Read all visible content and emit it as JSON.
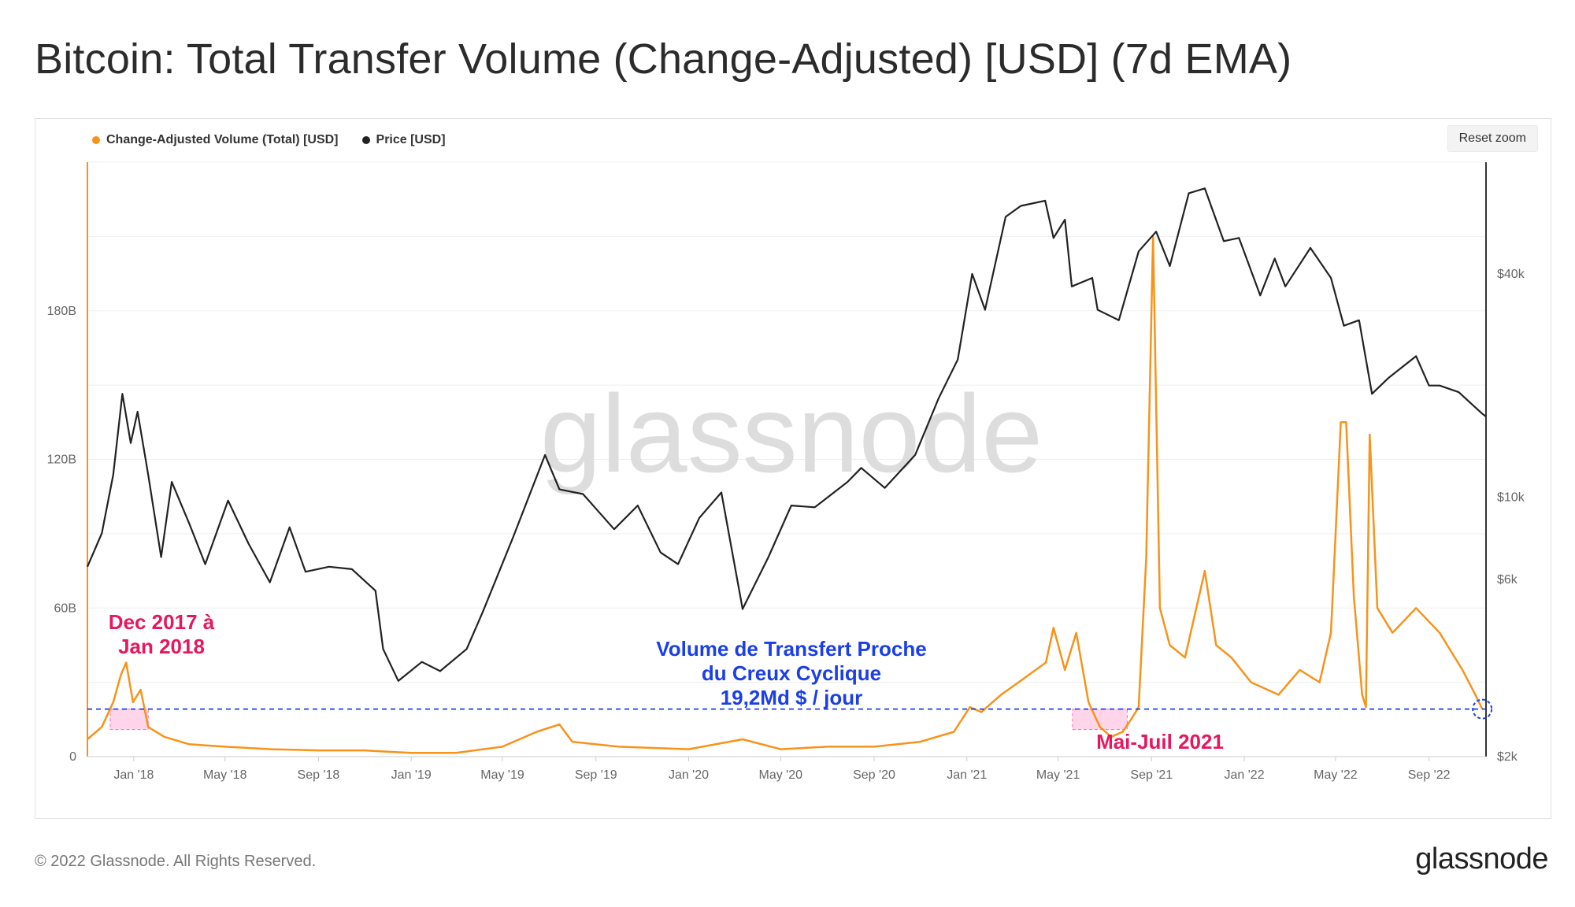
{
  "title": "Bitcoin: Total Transfer Volume (Change-Adjusted) [USD] (7d EMA)",
  "reset_zoom": "Reset zoom",
  "footer": {
    "copyright": "© 2022 Glassnode. All Rights Reserved.",
    "logo": "glassnode"
  },
  "watermark": "glassnode",
  "colors": {
    "volume": "#f7931a",
    "price": "#222222",
    "highlight": "#ff69b4",
    "annot_pink": "#e8175d",
    "annot_blue": "#1a3fe8"
  },
  "chart_data": {
    "type": "line",
    "title": "Bitcoin: Total Transfer Volume (Change-Adjusted) [USD] (7d EMA)",
    "legend_placement": "top-left",
    "x_ticks": [
      "Jan '18",
      "May '18",
      "Sep '18",
      "Jan '19",
      "May '19",
      "Sep '19",
      "Jan '20",
      "May '20",
      "Sep '20",
      "Jan '21",
      "May '21",
      "Sep '21",
      "Jan '22",
      "May '22",
      "Sep '22"
    ],
    "x_range": [
      "2017-11-01",
      "2022-11-15"
    ],
    "y_left": {
      "ticks": [
        "0",
        "60B",
        "120B",
        "180B"
      ],
      "range": [
        0,
        240
      ],
      "unit": "B"
    },
    "y_right": {
      "ticks": [
        "$2k",
        "$6k",
        "$10k",
        "$40k"
      ],
      "scale": "log",
      "range": [
        2000,
        80000
      ]
    },
    "series": [
      {
        "name": "Change-Adjusted Volume (Total) [USD]",
        "axis": "left",
        "color": "#f7931a",
        "points": [
          [
            "2017-11-01",
            7
          ],
          [
            "2017-11-20",
            12
          ],
          [
            "2017-12-05",
            22
          ],
          [
            "2017-12-15",
            33
          ],
          [
            "2017-12-22",
            38
          ],
          [
            "2017-12-31",
            22
          ],
          [
            "2018-01-10",
            27
          ],
          [
            "2018-01-20",
            12
          ],
          [
            "2018-02-10",
            8
          ],
          [
            "2018-03-15",
            5
          ],
          [
            "2018-05-01",
            4
          ],
          [
            "2018-07-01",
            3
          ],
          [
            "2018-09-01",
            2.5
          ],
          [
            "2018-11-01",
            2.5
          ],
          [
            "2018-12-01",
            2
          ],
          [
            "2019-01-01",
            1.5
          ],
          [
            "2019-03-01",
            1.5
          ],
          [
            "2019-05-01",
            4
          ],
          [
            "2019-06-15",
            10
          ],
          [
            "2019-07-15",
            13
          ],
          [
            "2019-08-01",
            6
          ],
          [
            "2019-10-01",
            4
          ],
          [
            "2020-01-01",
            3
          ],
          [
            "2020-03-12",
            7
          ],
          [
            "2020-05-01",
            3
          ],
          [
            "2020-07-01",
            4
          ],
          [
            "2020-09-01",
            4
          ],
          [
            "2020-11-01",
            6
          ],
          [
            "2020-12-15",
            10
          ],
          [
            "2021-01-05",
            20
          ],
          [
            "2021-01-20",
            18
          ],
          [
            "2021-02-15",
            25
          ],
          [
            "2021-03-10",
            30
          ],
          [
            "2021-04-15",
            38
          ],
          [
            "2021-04-25",
            52
          ],
          [
            "2021-05-10",
            35
          ],
          [
            "2021-05-25",
            50
          ],
          [
            "2021-06-10",
            22
          ],
          [
            "2021-06-25",
            12
          ],
          [
            "2021-07-10",
            8
          ],
          [
            "2021-07-25",
            10
          ],
          [
            "2021-08-05",
            15
          ],
          [
            "2021-08-15",
            20
          ],
          [
            "2021-08-25",
            80
          ],
          [
            "2021-09-03",
            210
          ],
          [
            "2021-09-12",
            60
          ],
          [
            "2021-09-25",
            45
          ],
          [
            "2021-10-15",
            40
          ],
          [
            "2021-11-10",
            75
          ],
          [
            "2021-11-25",
            45
          ],
          [
            "2021-12-15",
            40
          ],
          [
            "2022-01-10",
            30
          ],
          [
            "2022-02-15",
            25
          ],
          [
            "2022-03-15",
            35
          ],
          [
            "2022-04-10",
            30
          ],
          [
            "2022-04-25",
            50
          ],
          [
            "2022-05-08",
            135
          ],
          [
            "2022-05-15",
            135
          ],
          [
            "2022-05-25",
            65
          ],
          [
            "2022-06-05",
            25
          ],
          [
            "2022-06-10",
            20
          ],
          [
            "2022-06-15",
            130
          ],
          [
            "2022-06-25",
            60
          ],
          [
            "2022-07-15",
            50
          ],
          [
            "2022-08-15",
            60
          ],
          [
            "2022-09-15",
            50
          ],
          [
            "2022-10-15",
            35
          ],
          [
            "2022-11-01",
            25
          ],
          [
            "2022-11-10",
            19.2
          ]
        ]
      },
      {
        "name": "Price [USD]",
        "axis": "right",
        "color": "#222222",
        "points": [
          [
            "2017-11-01",
            6500
          ],
          [
            "2017-11-20",
            8000
          ],
          [
            "2017-12-05",
            11500
          ],
          [
            "2017-12-17",
            19000
          ],
          [
            "2017-12-28",
            14000
          ],
          [
            "2018-01-06",
            17000
          ],
          [
            "2018-01-20",
            11500
          ],
          [
            "2018-02-06",
            6900
          ],
          [
            "2018-02-20",
            11000
          ],
          [
            "2018-03-15",
            8500
          ],
          [
            "2018-04-05",
            6600
          ],
          [
            "2018-05-05",
            9800
          ],
          [
            "2018-06-01",
            7500
          ],
          [
            "2018-06-29",
            5900
          ],
          [
            "2018-07-25",
            8300
          ],
          [
            "2018-08-15",
            6300
          ],
          [
            "2018-09-15",
            6500
          ],
          [
            "2018-10-15",
            6400
          ],
          [
            "2018-11-15",
            5600
          ],
          [
            "2018-11-25",
            3900
          ],
          [
            "2018-12-15",
            3200
          ],
          [
            "2019-01-15",
            3600
          ],
          [
            "2019-02-08",
            3400
          ],
          [
            "2019-03-15",
            3900
          ],
          [
            "2019-04-05",
            4900
          ],
          [
            "2019-05-15",
            7800
          ],
          [
            "2019-06-26",
            13000
          ],
          [
            "2019-07-15",
            10500
          ],
          [
            "2019-08-15",
            10200
          ],
          [
            "2019-09-25",
            8200
          ],
          [
            "2019-10-26",
            9500
          ],
          [
            "2019-11-25",
            7100
          ],
          [
            "2019-12-18",
            6600
          ],
          [
            "2020-01-15",
            8800
          ],
          [
            "2020-02-13",
            10300
          ],
          [
            "2020-03-12",
            5000
          ],
          [
            "2020-04-15",
            6900
          ],
          [
            "2020-05-15",
            9500
          ],
          [
            "2020-06-15",
            9400
          ],
          [
            "2020-07-28",
            11000
          ],
          [
            "2020-08-15",
            12000
          ],
          [
            "2020-09-15",
            10600
          ],
          [
            "2020-10-25",
            13000
          ],
          [
            "2020-11-25",
            18500
          ],
          [
            "2020-12-20",
            23500
          ],
          [
            "2021-01-08",
            40000
          ],
          [
            "2021-01-25",
            32000
          ],
          [
            "2021-02-21",
            57000
          ],
          [
            "2021-03-13",
            61000
          ],
          [
            "2021-04-14",
            63000
          ],
          [
            "2021-04-25",
            50000
          ],
          [
            "2021-05-10",
            56000
          ],
          [
            "2021-05-19",
            37000
          ],
          [
            "2021-06-15",
            39000
          ],
          [
            "2021-06-22",
            32000
          ],
          [
            "2021-07-20",
            30000
          ],
          [
            "2021-08-15",
            46000
          ],
          [
            "2021-09-07",
            52000
          ],
          [
            "2021-09-25",
            42000
          ],
          [
            "2021-10-20",
            66000
          ],
          [
            "2021-11-10",
            68000
          ],
          [
            "2021-12-05",
            49000
          ],
          [
            "2021-12-25",
            50000
          ],
          [
            "2022-01-22",
            35000
          ],
          [
            "2022-02-10",
            44000
          ],
          [
            "2022-02-24",
            37000
          ],
          [
            "2022-03-29",
            47000
          ],
          [
            "2022-04-25",
            39000
          ],
          [
            "2022-05-12",
            29000
          ],
          [
            "2022-06-01",
            30000
          ],
          [
            "2022-06-18",
            19000
          ],
          [
            "2022-07-10",
            21000
          ],
          [
            "2022-08-15",
            24000
          ],
          [
            "2022-09-01",
            20000
          ],
          [
            "2022-09-15",
            20000
          ],
          [
            "2022-10-10",
            19200
          ],
          [
            "2022-11-10",
            16800
          ],
          [
            "2022-11-15",
            16500
          ]
        ]
      }
    ],
    "annotations": [
      {
        "text_lines": [
          "Dec 2017 à",
          "Jan 2018"
        ],
        "color": "#e8175d"
      },
      {
        "text_lines": [
          "Volume de Transfert Proche",
          "du Creux Cyclique",
          "19,2Md $ / jour"
        ],
        "color": "#1a3fe8"
      },
      {
        "text_lines": [
          "Mai-Juil 2021"
        ],
        "color": "#e8175d"
      }
    ],
    "threshold": {
      "value": 19.2,
      "unit": "B",
      "color": "#1a3fe8"
    },
    "highlights": [
      {
        "from": "2017-12-01",
        "to": "2018-01-20"
      },
      {
        "from": "2021-05-20",
        "to": "2021-07-31"
      }
    ]
  }
}
